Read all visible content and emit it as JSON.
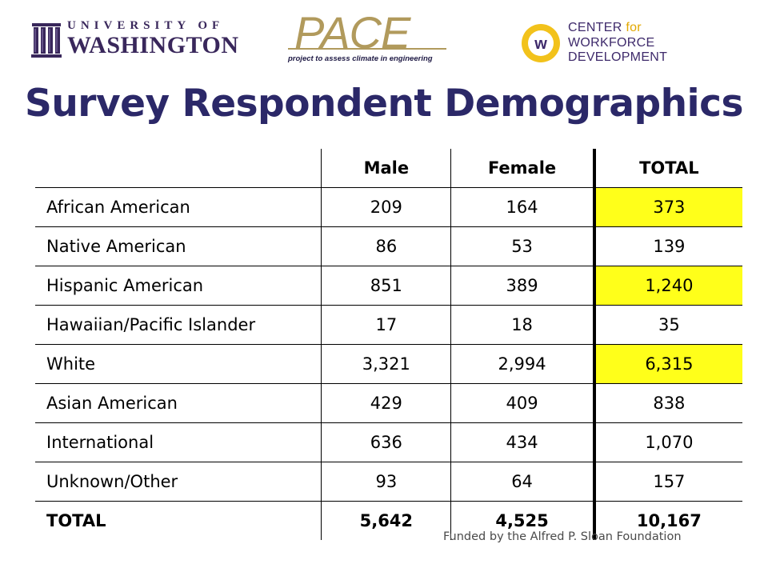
{
  "logos": {
    "uw": {
      "line1": "UNIVERSITY OF",
      "line2": "WASHINGTON"
    },
    "pace": {
      "word": "PACE",
      "tagline": "project to assess climate in engineering"
    },
    "cwd": {
      "line1a": "CENTER ",
      "line1b": "for",
      "line2": "WORKFORCE DEVELOPMENT"
    }
  },
  "title": "Survey Respondent Demographics",
  "table": {
    "headers": [
      "",
      "Male",
      "Female",
      "TOTAL"
    ],
    "rows": [
      {
        "label": "African American",
        "male": "209",
        "female": "164",
        "total": "373",
        "highlight": true
      },
      {
        "label": "Native American",
        "male": "86",
        "female": "53",
        "total": "139",
        "highlight": false
      },
      {
        "label": "Hispanic American",
        "male": "851",
        "female": "389",
        "total": "1,240",
        "highlight": true
      },
      {
        "label": "Hawaiian/Pacific Islander",
        "male": "17",
        "female": "18",
        "total": "35",
        "highlight": false
      },
      {
        "label": "White",
        "male": "3,321",
        "female": "2,994",
        "total": "6,315",
        "highlight": true
      },
      {
        "label": "Asian American",
        "male": "429",
        "female": "409",
        "total": "838",
        "highlight": false
      },
      {
        "label": "International",
        "male": "636",
        "female": "434",
        "total": "1,070",
        "highlight": false
      },
      {
        "label": "Unknown/Other",
        "male": "93",
        "female": "64",
        "total": "157",
        "highlight": false
      }
    ],
    "total_row": {
      "label": "TOTAL",
      "male": "5,642",
      "female": "4,525",
      "total": "10,167"
    }
  },
  "footer": {
    "funded": "Funded by the Alfred P. Sloan Foundation"
  },
  "colors": {
    "title": "#2b2868",
    "highlight": "#ffff1a",
    "uw_purple": "#39275b",
    "gold": "#b19a5c"
  }
}
